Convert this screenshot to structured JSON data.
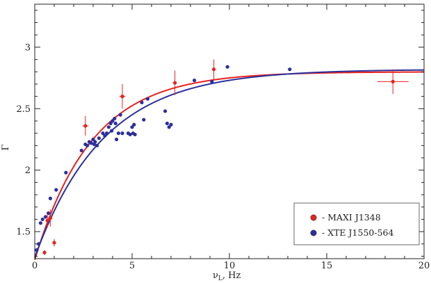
{
  "chart_data": {
    "type": "scatter",
    "xlabel": "ν",
    "xlabel_sub": "L",
    "xlabel_unit": ",  Hz",
    "ylabel": "Γ",
    "xlim": [
      0,
      20
    ],
    "ylim": [
      1.28,
      3.35
    ],
    "x_ticks": [
      "0",
      "5",
      "10",
      "15",
      "20"
    ],
    "y_ticks": [
      "1.5",
      "2",
      "2.5",
      "3"
    ],
    "x_tick_values": [
      0,
      5,
      10,
      15,
      20
    ],
    "y_tick_values": [
      1.5,
      2,
      2.5,
      3
    ],
    "grid": false,
    "legend_position": "bottom-right",
    "series": [
      {
        "name": "- MAXI J1348",
        "color": "#e8211c",
        "marker": "circle",
        "points": [
          {
            "x": 0.5,
            "y": 1.33,
            "xerr": 0.0,
            "yerr": 0.02
          },
          {
            "x": 0.65,
            "y": 1.59,
            "xerr": 0.1,
            "yerr": 0.05
          },
          {
            "x": 0.8,
            "y": 1.61,
            "xerr": 0.1,
            "yerr": 0.07
          },
          {
            "x": 1.0,
            "y": 1.41,
            "xerr": 0.05,
            "yerr": 0.03
          },
          {
            "x": 2.6,
            "y": 2.36,
            "xerr": 0.15,
            "yerr": 0.08
          },
          {
            "x": 4.5,
            "y": 2.6,
            "xerr": 0.15,
            "yerr": 0.1
          },
          {
            "x": 7.2,
            "y": 2.71,
            "xerr": 0.1,
            "yerr": 0.1
          },
          {
            "x": 9.2,
            "y": 2.82,
            "xerr": 0.0,
            "yerr": 0.08
          },
          {
            "x": 18.4,
            "y": 2.72,
            "xerr": 0.8,
            "yerr": 0.1
          }
        ]
      },
      {
        "name": "- XTE J1550-564",
        "color": "#2b2f9c",
        "marker": "circle",
        "points": [
          {
            "x": 0.1,
            "y": 1.35
          },
          {
            "x": 0.2,
            "y": 1.4
          },
          {
            "x": 0.3,
            "y": 1.57
          },
          {
            "x": 0.4,
            "y": 1.6
          },
          {
            "x": 0.55,
            "y": 1.62
          },
          {
            "x": 0.7,
            "y": 1.65
          },
          {
            "x": 0.8,
            "y": 1.77
          },
          {
            "x": 1.1,
            "y": 1.84
          },
          {
            "x": 1.6,
            "y": 1.98
          },
          {
            "x": 2.4,
            "y": 2.16
          },
          {
            "x": 2.6,
            "y": 2.21
          },
          {
            "x": 2.7,
            "y": 2.2
          },
          {
            "x": 2.8,
            "y": 2.23
          },
          {
            "x": 2.9,
            "y": 2.22
          },
          {
            "x": 3.0,
            "y": 2.25
          },
          {
            "x": 3.05,
            "y": 2.21
          },
          {
            "x": 3.1,
            "y": 2.23
          },
          {
            "x": 3.2,
            "y": 2.2
          },
          {
            "x": 3.3,
            "y": 2.26
          },
          {
            "x": 3.5,
            "y": 2.3
          },
          {
            "x": 3.6,
            "y": 2.28
          },
          {
            "x": 3.7,
            "y": 2.3
          },
          {
            "x": 3.8,
            "y": 2.35
          },
          {
            "x": 3.9,
            "y": 2.38
          },
          {
            "x": 3.95,
            "y": 2.32
          },
          {
            "x": 4.0,
            "y": 2.4
          },
          {
            "x": 4.1,
            "y": 2.42
          },
          {
            "x": 4.15,
            "y": 2.38
          },
          {
            "x": 4.2,
            "y": 2.25
          },
          {
            "x": 4.3,
            "y": 2.3
          },
          {
            "x": 4.4,
            "y": 2.45
          },
          {
            "x": 4.5,
            "y": 2.3
          },
          {
            "x": 4.8,
            "y": 2.3
          },
          {
            "x": 4.9,
            "y": 2.29
          },
          {
            "x": 5.0,
            "y": 2.35
          },
          {
            "x": 5.05,
            "y": 2.3
          },
          {
            "x": 5.1,
            "y": 2.37
          },
          {
            "x": 5.15,
            "y": 2.29
          },
          {
            "x": 5.5,
            "y": 2.55
          },
          {
            "x": 5.6,
            "y": 2.41
          },
          {
            "x": 5.8,
            "y": 2.58
          },
          {
            "x": 6.7,
            "y": 2.48
          },
          {
            "x": 6.8,
            "y": 2.38
          },
          {
            "x": 6.9,
            "y": 2.35
          },
          {
            "x": 7.0,
            "y": 2.37
          },
          {
            "x": 8.2,
            "y": 2.73
          },
          {
            "x": 9.1,
            "y": 2.72
          },
          {
            "x": 9.9,
            "y": 2.84
          },
          {
            "x": 13.1,
            "y": 2.82
          }
        ]
      }
    ],
    "fits": [
      {
        "series": "- MAXI J1348",
        "color": "#e8211c",
        "A": 2.8,
        "B": 1.53,
        "D": 2.92
      },
      {
        "series": "- XTE J1550-564",
        "color": "#2b2f9c",
        "A": 2.82,
        "B": 1.53,
        "D": 3.52
      }
    ]
  }
}
